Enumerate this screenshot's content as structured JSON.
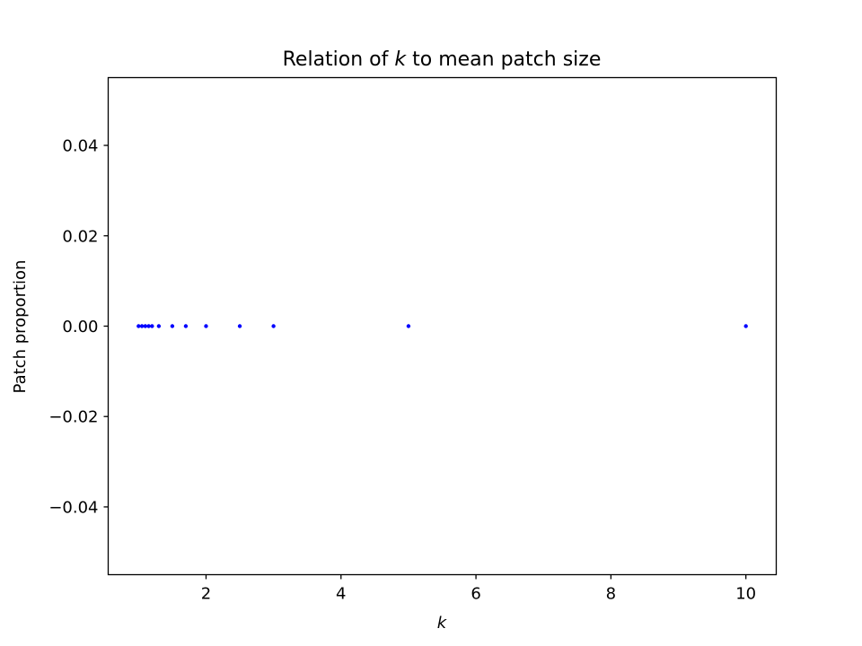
{
  "chart_data": {
    "type": "scatter",
    "title_prefix": "Relation of ",
    "title_var": "k",
    "title_suffix": " to mean patch size",
    "xlabel": "k",
    "ylabel": "Patch proportion",
    "xlim": [
      0.55,
      10.45
    ],
    "ylim": [
      -0.055,
      0.055
    ],
    "xticks": [
      2,
      4,
      6,
      8,
      10
    ],
    "xtick_labels": [
      "2",
      "4",
      "6",
      "8",
      "10"
    ],
    "yticks": [
      0.04,
      0.02,
      0.0,
      -0.02,
      -0.04
    ],
    "ytick_labels": [
      "0.04",
      "0.02",
      "0.00",
      "−0.02",
      "−0.04"
    ],
    "grid": false,
    "marker_color": "#0000ff",
    "x": [
      1.0,
      1.05,
      1.1,
      1.15,
      1.2,
      1.3,
      1.5,
      1.7,
      2.0,
      2.5,
      3.0,
      5.0,
      10.0
    ],
    "y": [
      0,
      0,
      0,
      0,
      0,
      0,
      0,
      0,
      0,
      0,
      0,
      0,
      0
    ]
  }
}
